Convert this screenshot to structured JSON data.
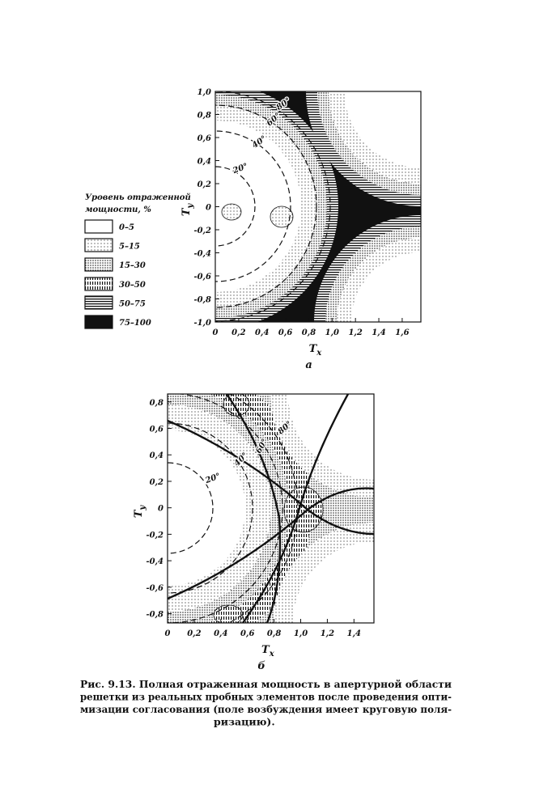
{
  "legend": {
    "title_lines": [
      "Уровень отраженной",
      "мощности, %"
    ],
    "items": [
      "0–5",
      "5–15",
      "15–30",
      "30–50",
      "50–75",
      "75–100"
    ]
  },
  "figures": [
    {
      "panel": "а",
      "ylabel": "T",
      "ylabel_sub": "y",
      "xlabel": "T",
      "xlabel_sub": "x",
      "xlim": [
        0,
        1.76
      ],
      "ylim": [
        -1,
        1
      ],
      "xticks": [
        0,
        {
          "value": 0.2,
          "label": "0,2"
        },
        {
          "value": 0.4,
          "label": "0,4"
        },
        {
          "value": 0.6,
          "label": "0,6"
        },
        {
          "value": 0.8,
          "label": "0,8"
        },
        {
          "value": 1.0,
          "label": "1,0"
        },
        {
          "value": 1.2,
          "label": "1,2"
        },
        {
          "value": 1.4,
          "label": "1,4"
        },
        {
          "value": 1.6,
          "label": "1,6"
        }
      ],
      "yticks": [
        {
          "value": 1.0,
          "label": "1,0"
        },
        {
          "value": 0.8,
          "label": "0,8"
        },
        {
          "value": 0.6,
          "label": "0,6"
        },
        {
          "value": 0.4,
          "label": "0,4"
        },
        {
          "value": 0.2,
          "label": "0,2"
        },
        0,
        {
          "value": -0.2,
          "label": "-0,2"
        },
        {
          "value": -0.4,
          "label": "-0,4"
        },
        {
          "value": -0.6,
          "label": "-0,6"
        },
        {
          "value": -0.8,
          "label": "-0,8"
        },
        {
          "value": -1.0,
          "label": "-1,0"
        }
      ],
      "contour_labels": [
        "80°",
        "60°",
        "40°",
        "20°"
      ]
    },
    {
      "panel": "б",
      "ylabel": "T",
      "ylabel_sub": "y",
      "xlabel": "T",
      "xlabel_sub": "x",
      "xlim": [
        0,
        1.55
      ],
      "ylim": [
        -0.87,
        0.86
      ],
      "xticks": [
        0,
        {
          "value": 0.2,
          "label": "0,2"
        },
        {
          "value": 0.4,
          "label": "0,4"
        },
        {
          "value": 0.6,
          "label": "0,6"
        },
        {
          "value": 0.8,
          "label": "0,8"
        },
        {
          "value": 1.0,
          "label": "1,0"
        },
        {
          "value": 1.2,
          "label": "1,2"
        },
        {
          "value": 1.4,
          "label": "1,4"
        }
      ],
      "yticks": [
        {
          "value": 0.8,
          "label": "0,8"
        },
        {
          "value": 0.6,
          "label": "0,6"
        },
        {
          "value": 0.4,
          "label": "0,4"
        },
        {
          "value": 0.2,
          "label": "0,2"
        },
        0,
        {
          "value": -0.2,
          "label": "-0,2"
        },
        {
          "value": -0.4,
          "label": "-0,4"
        },
        {
          "value": -0.6,
          "label": "-0,6"
        },
        {
          "value": -0.8,
          "label": "-0,8"
        }
      ],
      "contour_labels": [
        "80°",
        "60°",
        "40°",
        "20°"
      ]
    }
  ],
  "caption": {
    "lines": [
      "Рис. 9.13. Полная отраженная мощность в апертурной области",
      "решетки из реальных пробных элементов после проведения опти-",
      "мизации согласования (поле возбуждения имеет круговую поля-",
      "ризацию)."
    ]
  }
}
